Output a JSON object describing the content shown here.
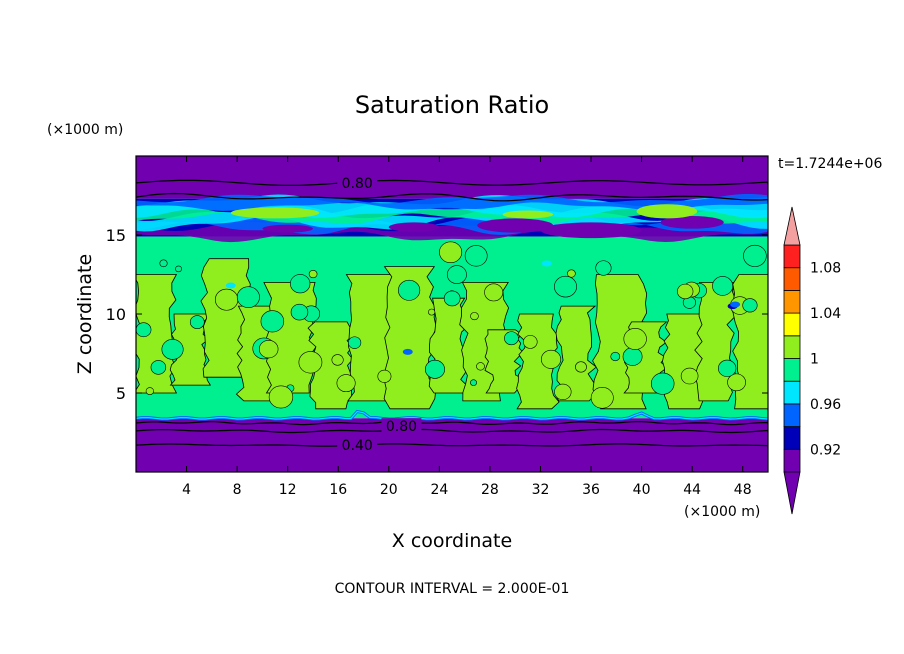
{
  "chart_data": {
    "type": "heatmap",
    "title": "Saturation Ratio",
    "xlabel": "X coordinate",
    "ylabel": "Z coordinate",
    "x_unit": "(×1000 m)",
    "y_unit": "(×1000 m)",
    "time_label": "t=1.7244e+06",
    "footer": "CONTOUR INTERVAL = 2.000E-01",
    "xlim": [
      0,
      50
    ],
    "ylim": [
      0,
      20
    ],
    "x_ticks": [
      4,
      8,
      12,
      16,
      20,
      24,
      28,
      32,
      36,
      40,
      44,
      48
    ],
    "y_ticks": [
      5,
      10,
      15
    ],
    "x_tick_labels": [
      "4",
      "8",
      "12",
      "16",
      "20",
      "24",
      "28",
      "32",
      "36",
      "40",
      "44",
      "48"
    ],
    "y_tick_labels": [
      "5",
      "10",
      "15"
    ],
    "colorbar": {
      "levels": [
        0.9,
        0.92,
        0.94,
        0.96,
        0.98,
        1.0,
        1.02,
        1.04,
        1.06,
        1.08,
        1.1
      ],
      "labels": [
        {
          "value": 0.92,
          "text": "0.92"
        },
        {
          "value": 0.96,
          "text": "0.96"
        },
        {
          "value": 1.0,
          "text": "1"
        },
        {
          "value": 1.04,
          "text": "1.04"
        },
        {
          "value": 1.08,
          "text": "1.08"
        }
      ],
      "colors": [
        "#7000b0",
        "#0000b8",
        "#0064ff",
        "#00e6ff",
        "#00f090",
        "#90ee1e",
        "#ffff00",
        "#ff9600",
        "#ff5a00",
        "#ff2020"
      ],
      "under_color": "#7000b0",
      "over_color": "#f4a0a0"
    },
    "contour_labels": [
      {
        "text": "0.80",
        "x": 17.5,
        "y": 18.3
      },
      {
        "text": "0.80",
        "x": 21.0,
        "y": 2.9
      },
      {
        "text": "0.40",
        "x": 17.5,
        "y": 1.7
      }
    ],
    "regions": [
      {
        "name": "lower-dry-layer",
        "z": [
          0,
          3.4
        ],
        "color": "#7000b0"
      },
      {
        "name": "middle-cloud-layer",
        "z": [
          3.4,
          14.9
        ],
        "color": "#00f090",
        "patch_color": "#90ee1e"
      },
      {
        "name": "upper-mixed-layer",
        "z": [
          14.9,
          17.3
        ],
        "colors": [
          "#7000b0",
          "#0000b8",
          "#0064ff",
          "#00e6ff",
          "#00f090"
        ]
      },
      {
        "name": "top-dry-layer",
        "z": [
          17.3,
          20
        ],
        "color": "#7000b0"
      }
    ]
  }
}
